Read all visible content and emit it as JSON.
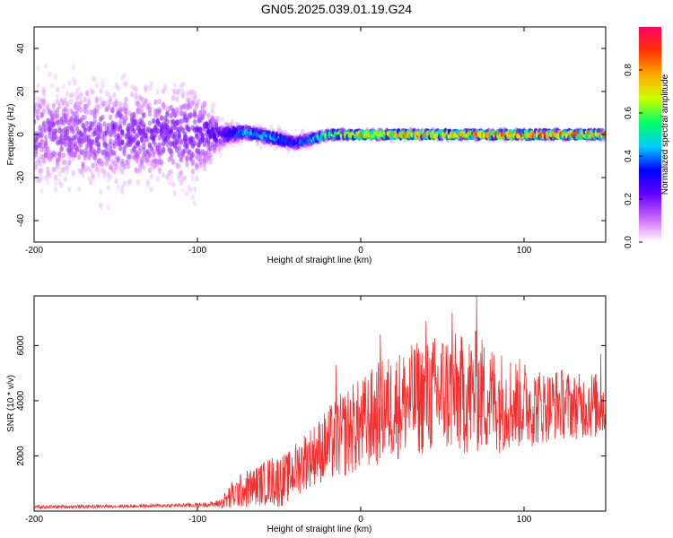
{
  "title": "GN05.2025.039.01.19.G24",
  "colors": {
    "snr_line": "#f03030",
    "background": "#ffffff",
    "axis": "#000000"
  },
  "chart_data": [
    {
      "type": "heatmap",
      "title": "GN05.2025.039.01.19.G24",
      "xlabel": "Height of straight line (km)",
      "ylabel": "Frequency (Hz)",
      "xlim": [
        -200,
        150
      ],
      "ylim": [
        -50,
        50
      ],
      "x_ticks": [
        -200,
        -100,
        0,
        100
      ],
      "y_ticks": [
        -40,
        -20,
        0,
        20,
        40
      ],
      "colorbar": {
        "label": "Normalized spectral amplitude",
        "range": [
          0.0,
          1.0
        ],
        "ticks": [
          0.0,
          0.2,
          0.4,
          0.6,
          0.8
        ],
        "tick_labels": [
          "0.0",
          "0.2",
          "0.4",
          "0.6",
          "0.8"
        ],
        "colormap": [
          "#ffffff",
          "#cc66ff",
          "#6600ff",
          "#0000ff",
          "#00ccff",
          "#00ff66",
          "#ccff00",
          "#ffaa00",
          "#ff3300",
          "#ff0066"
        ]
      },
      "ridge": [
        {
          "x": -200,
          "freq": 0,
          "amp": 0.15,
          "spread": 45
        },
        {
          "x": -150,
          "freq": 0,
          "amp": 0.18,
          "spread": 45
        },
        {
          "x": -100,
          "freq": 0,
          "amp": 0.2,
          "spread": 45
        },
        {
          "x": -85,
          "freq": 0,
          "amp": 0.25,
          "spread": 12
        },
        {
          "x": -70,
          "freq": 1,
          "amp": 0.5,
          "spread": 6
        },
        {
          "x": -50,
          "freq": -2,
          "amp": 0.45,
          "spread": 7
        },
        {
          "x": -40,
          "freq": -4,
          "amp": 0.35,
          "spread": 6
        },
        {
          "x": -20,
          "freq": 0,
          "amp": 0.7,
          "spread": 4
        },
        {
          "x": 0,
          "freq": 0,
          "amp": 0.85,
          "spread": 3
        },
        {
          "x": 50,
          "freq": 0,
          "amp": 0.9,
          "spread": 3
        },
        {
          "x": 100,
          "freq": 0,
          "amp": 0.95,
          "spread": 3
        },
        {
          "x": 150,
          "freq": 0,
          "amp": 0.95,
          "spread": 3
        }
      ]
    },
    {
      "type": "line",
      "xlabel": "Height of straight line (km)",
      "ylabel": "SNR (10 * v/v)",
      "xlim": [
        -200,
        150
      ],
      "ylim": [
        0,
        7800
      ],
      "x_ticks": [
        -200,
        -100,
        0,
        100
      ],
      "y_ticks": [
        2000,
        4000,
        6000
      ],
      "series": [
        {
          "x": [
            -200,
            -180,
            -160,
            -140,
            -120,
            -100,
            -90,
            -85,
            -80,
            -75,
            -70,
            -65,
            -60,
            -55,
            -50,
            -45,
            -40,
            -35,
            -30,
            -25,
            -20,
            -15,
            -10,
            -5,
            0,
            5,
            10,
            15,
            20,
            25,
            30,
            35,
            40,
            45,
            50,
            55,
            60,
            65,
            70,
            75,
            80,
            85,
            90,
            95,
            100,
            105,
            110,
            115,
            120,
            125,
            130,
            135,
            140,
            145,
            150
          ],
          "values": [
            150,
            160,
            170,
            180,
            200,
            220,
            250,
            300,
            500,
            700,
            800,
            900,
            1000,
            1100,
            1100,
            1200,
            1500,
            1800,
            2000,
            2200,
            2400,
            2600,
            2800,
            3000,
            3100,
            3300,
            3500,
            3700,
            3800,
            3900,
            4000,
            4100,
            4100,
            4200,
            4300,
            4300,
            4200,
            4200,
            4300,
            4200,
            4100,
            4000,
            4000,
            3900,
            3900,
            3800,
            3800,
            3800,
            3900,
            3900,
            3800,
            3800,
            3900,
            3800,
            3800
          ],
          "noise": [
            60,
            60,
            60,
            60,
            60,
            80,
            100,
            200,
            500,
            600,
            700,
            700,
            800,
            900,
            1000,
            900,
            1000,
            1100,
            1100,
            1200,
            1400,
            1500,
            1600,
            1700,
            1700,
            1800,
            1900,
            1900,
            2000,
            2000,
            2000,
            2100,
            2100,
            2200,
            2300,
            2300,
            2200,
            2200,
            2300,
            2100,
            2000,
            1900,
            1800,
            1700,
            1600,
            1500,
            1400,
            1300,
            1300,
            1300,
            1200,
            1200,
            1300,
            1200,
            1200
          ],
          "peaks": [
            {
              "x": 71,
              "y": 7800
            },
            {
              "x": 56,
              "y": 7200
            },
            {
              "x": 40,
              "y": 6900
            },
            {
              "x": 12,
              "y": 6400
            },
            {
              "x": -15,
              "y": 5300
            },
            {
              "x": 147,
              "y": 5700
            }
          ]
        }
      ]
    }
  ]
}
